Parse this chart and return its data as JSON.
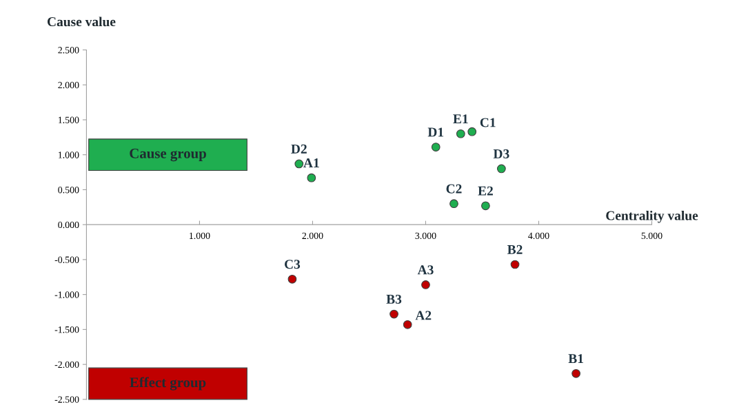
{
  "chart_data": {
    "type": "scatter",
    "xlabel": "Centrality value",
    "ylabel": "Cause value",
    "xlim": [
      0,
      5.0
    ],
    "ylim": [
      -2.5,
      2.5
    ],
    "xticks": [
      {
        "value": 1,
        "label": "1.000"
      },
      {
        "value": 2,
        "label": "2.000"
      },
      {
        "value": 3,
        "label": "3.000"
      },
      {
        "value": 4,
        "label": "4.000"
      },
      {
        "value": 5,
        "label": "5.000"
      }
    ],
    "yticks": [
      {
        "value": 2.5,
        "label": "2.500"
      },
      {
        "value": 2,
        "label": "2.000"
      },
      {
        "value": 1.5,
        "label": "1.500"
      },
      {
        "value": 1,
        "label": "1.000"
      },
      {
        "value": 0.5,
        "label": "0.500"
      },
      {
        "value": 0,
        "label": "0.000"
      },
      {
        "value": -0.5,
        "label": "-0.500"
      },
      {
        "value": -1,
        "label": "-1.000"
      },
      {
        "value": -1.5,
        "label": "-1.500"
      },
      {
        "value": -2,
        "label": "-2.000"
      },
      {
        "value": -2.5,
        "label": "-2.500"
      }
    ],
    "marker": "circle",
    "grid": false,
    "legend": "left",
    "series": [
      {
        "name": "Cause group",
        "color": "#1fae50",
        "x": [
          1.88,
          1.99,
          3.09,
          3.31,
          3.41,
          3.67,
          3.25,
          3.53
        ],
        "values": [
          0.87,
          0.67,
          1.11,
          1.3,
          1.33,
          0.8,
          0.3,
          0.27
        ]
      },
      {
        "name": "Effect group",
        "color": "#c00000",
        "x": [
          1.82,
          3.79,
          3.0,
          2.72,
          2.84,
          4.33
        ],
        "values": [
          -0.78,
          -0.57,
          -0.86,
          -1.28,
          -1.43,
          -2.13
        ]
      }
    ],
    "annotations": [
      {
        "text": "D2",
        "x": 1.88,
        "y": 0.87
      },
      {
        "text": "A1",
        "x": 1.99,
        "y": 0.67
      },
      {
        "text": "D1",
        "x": 3.09,
        "y": 1.11
      },
      {
        "text": "E1",
        "x": 3.31,
        "y": 1.3
      },
      {
        "text": "C1",
        "x": 3.41,
        "y": 1.33
      },
      {
        "text": "D3",
        "x": 3.67,
        "y": 0.8
      },
      {
        "text": "C2",
        "x": 3.25,
        "y": 0.3
      },
      {
        "text": "E2",
        "x": 3.53,
        "y": 0.27
      },
      {
        "text": "C3",
        "x": 1.82,
        "y": -0.78
      },
      {
        "text": "B2",
        "x": 3.79,
        "y": -0.57
      },
      {
        "text": "A3",
        "x": 3.0,
        "y": -0.86
      },
      {
        "text": "B3",
        "x": 2.72,
        "y": -1.28
      },
      {
        "text": "A2",
        "x": 2.84,
        "y": -1.43
      },
      {
        "text": "B1",
        "x": 4.33,
        "y": -2.13
      }
    ]
  }
}
